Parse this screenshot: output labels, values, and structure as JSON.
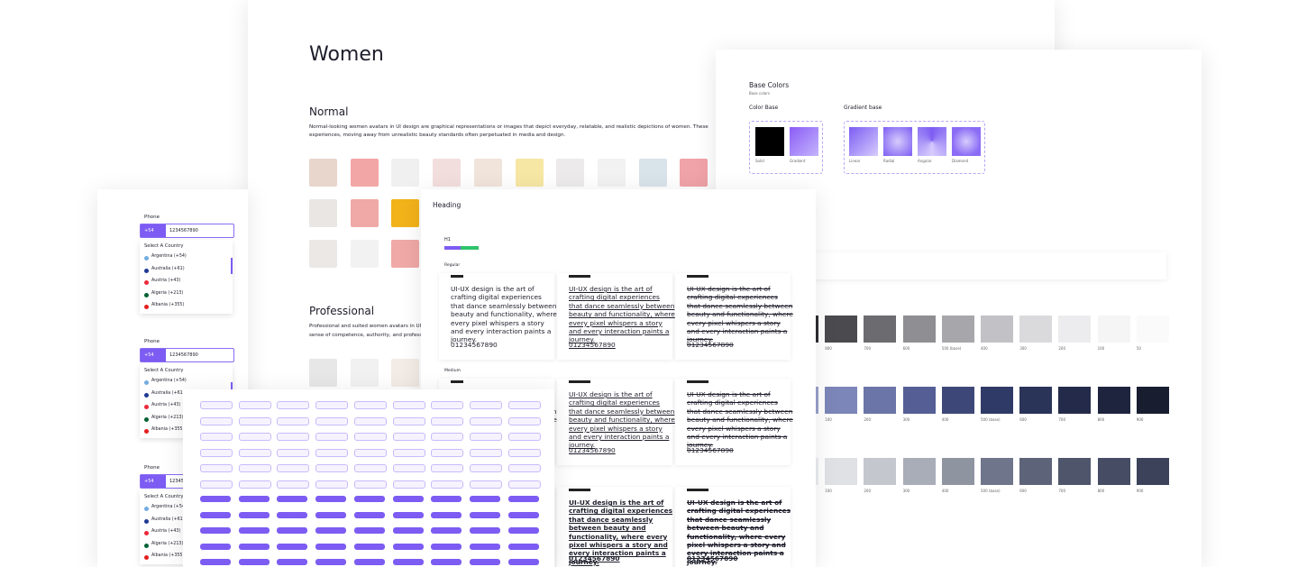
{
  "women": {
    "title": "Women",
    "normal": {
      "heading": "Normal",
      "lines": [
        "Normal-looking women avatars in UI design are graphical representations or images that depict everyday, relatable, and realistic depictions of women. These",
        "experiences, moving away from unrealistic beauty standards often perpetuated in media and design."
      ]
    },
    "professional": {
      "heading": "Professional",
      "lines": [
        "Professional and suited women avatars in UI",
        "sense of competence, authority, and profess"
      ]
    }
  },
  "colors": {
    "title": "Base Colors",
    "subtitle": "Base colors",
    "color_base": "Color Base",
    "gradient_base": "Gradient base",
    "solid": [
      "Solid",
      "Gradient"
    ],
    "gradients": [
      "Linear",
      "Radial",
      "Angular",
      "Diamond"
    ],
    "shades": [
      "50",
      "100",
      "200",
      "300",
      "400",
      "500 (base)",
      "600",
      "700",
      "800",
      "900"
    ]
  },
  "phone": {
    "label": "Phone",
    "code": "+54",
    "number": "1234567890",
    "select": "Select A Country",
    "countries": [
      "Argentina (+54)",
      "Australia (+61)",
      "Austria (+43)",
      "Algeria (+213)",
      "Albania (+355)"
    ]
  },
  "typography": {
    "heading": "Heading",
    "h1": "H1",
    "weights": [
      "Regular",
      "Medium"
    ],
    "sample": "UI-UX design is the art of crafting digital experiences that dance seamlessly between beauty and functionality, where every pixel whispers a story and every interaction paints a journey.",
    "digits": "01234567890"
  }
}
